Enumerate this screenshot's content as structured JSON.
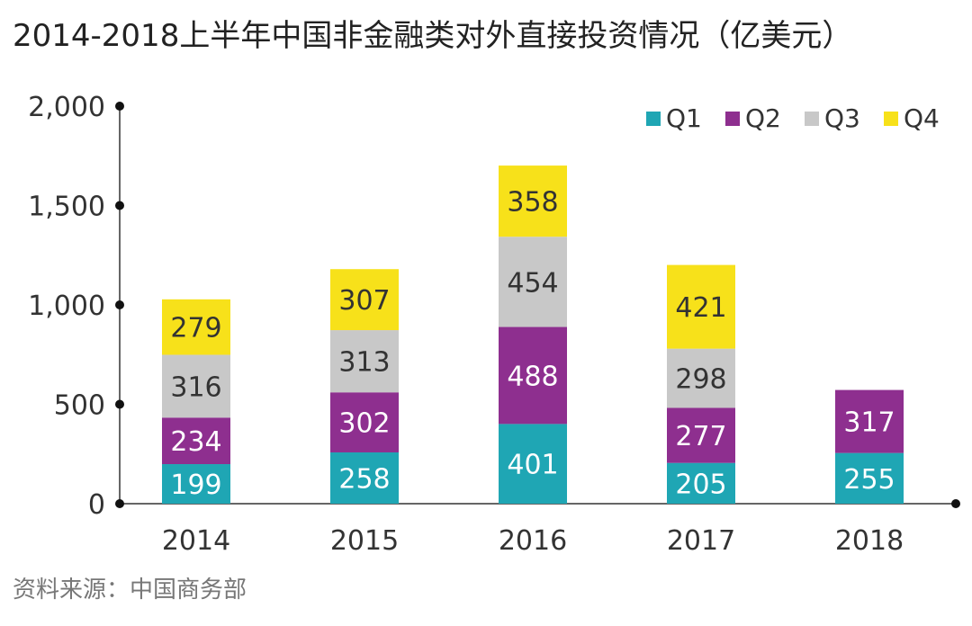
{
  "title": "2014-2018上半年中国非金融类对外直接投资情况（亿美元）",
  "source": "资料来源：中国商务部",
  "chart_data": {
    "type": "bar",
    "stacked": true,
    "title": "2014-2018上半年中国非金融类对外直接投资情况（亿美元）",
    "categories": [
      "2014",
      "2015",
      "2016",
      "2017",
      "2018"
    ],
    "series": [
      {
        "name": "Q1",
        "color": "#1fa6b4",
        "label_color": "#ffffff",
        "values": [
          199,
          258,
          401,
          205,
          255
        ]
      },
      {
        "name": "Q2",
        "color": "#8e2f8f",
        "label_color": "#ffffff",
        "values": [
          234,
          302,
          488,
          277,
          317
        ]
      },
      {
        "name": "Q3",
        "color": "#c8c8c8",
        "label_color": "#333333",
        "values": [
          316,
          313,
          454,
          298,
          null
        ]
      },
      {
        "name": "Q4",
        "color": "#f7e11a",
        "label_color": "#333333",
        "values": [
          279,
          307,
          358,
          421,
          null
        ]
      }
    ],
    "ylim": [
      0,
      2000
    ],
    "yticks": [
      0,
      500,
      1000,
      1500,
      2000
    ],
    "ytick_labels": [
      "0",
      "500",
      "1,000",
      "1,500",
      "2,000"
    ],
    "legend_position": "top-right",
    "grid": false
  }
}
